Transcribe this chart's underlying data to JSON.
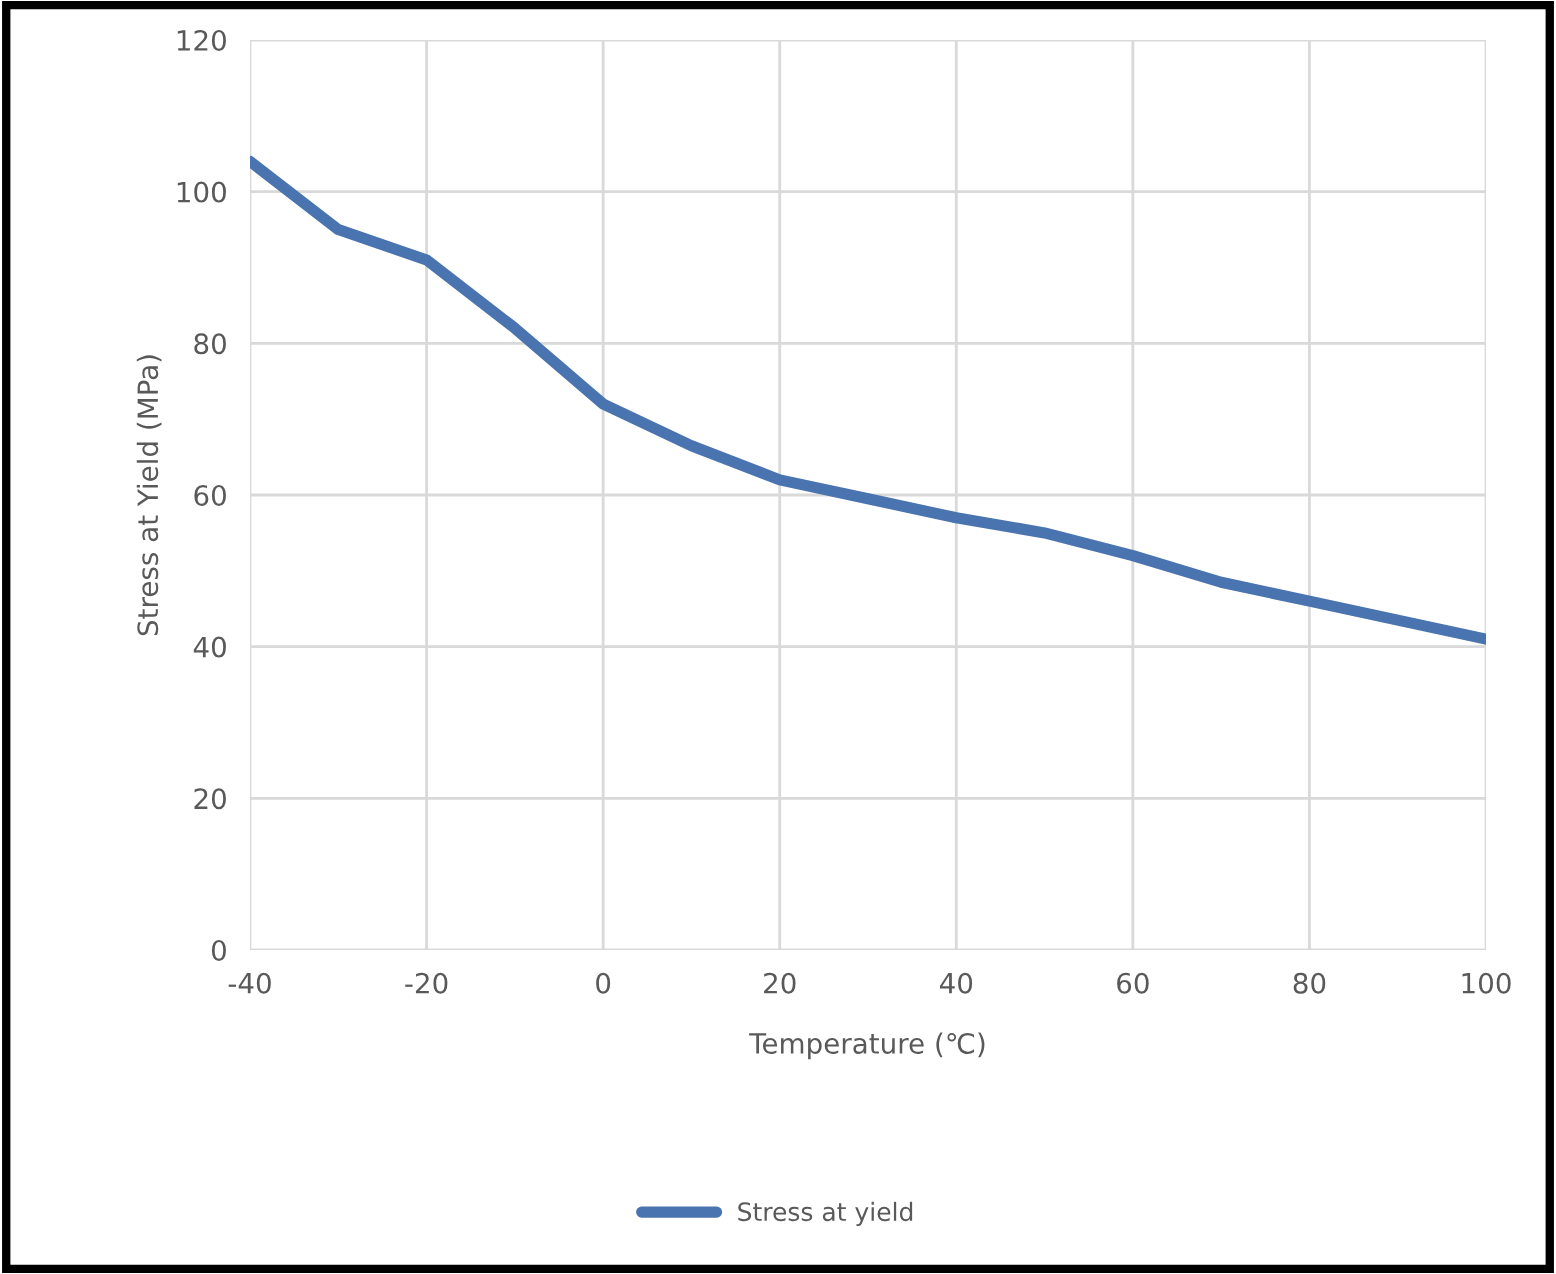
{
  "chart_data": {
    "type": "line",
    "xlabel": "Temperature (℃)",
    "ylabel": "Stress at Yield (MPa)",
    "xlim": [
      -40,
      100
    ],
    "xticks": [
      -40,
      -20,
      0,
      20,
      40,
      60,
      80,
      100
    ],
    "ylim": [
      0,
      120
    ],
    "yticks": [
      0,
      20,
      40,
      60,
      80,
      100,
      120
    ],
    "grid": true,
    "legend": "bottom",
    "marker": "none",
    "line_style": "solid",
    "series": [
      {
        "name": "Stress at yield",
        "color": "#4a74b0",
        "x": [
          -40,
          -30,
          -20,
          -10,
          0,
          10,
          20,
          30,
          40,
          50,
          60,
          70,
          80,
          90,
          100
        ],
        "values": [
          104,
          95,
          91,
          82,
          72,
          66.5,
          62,
          59.5,
          57,
          55,
          52,
          48.5,
          46,
          43.5,
          41
        ]
      }
    ]
  }
}
